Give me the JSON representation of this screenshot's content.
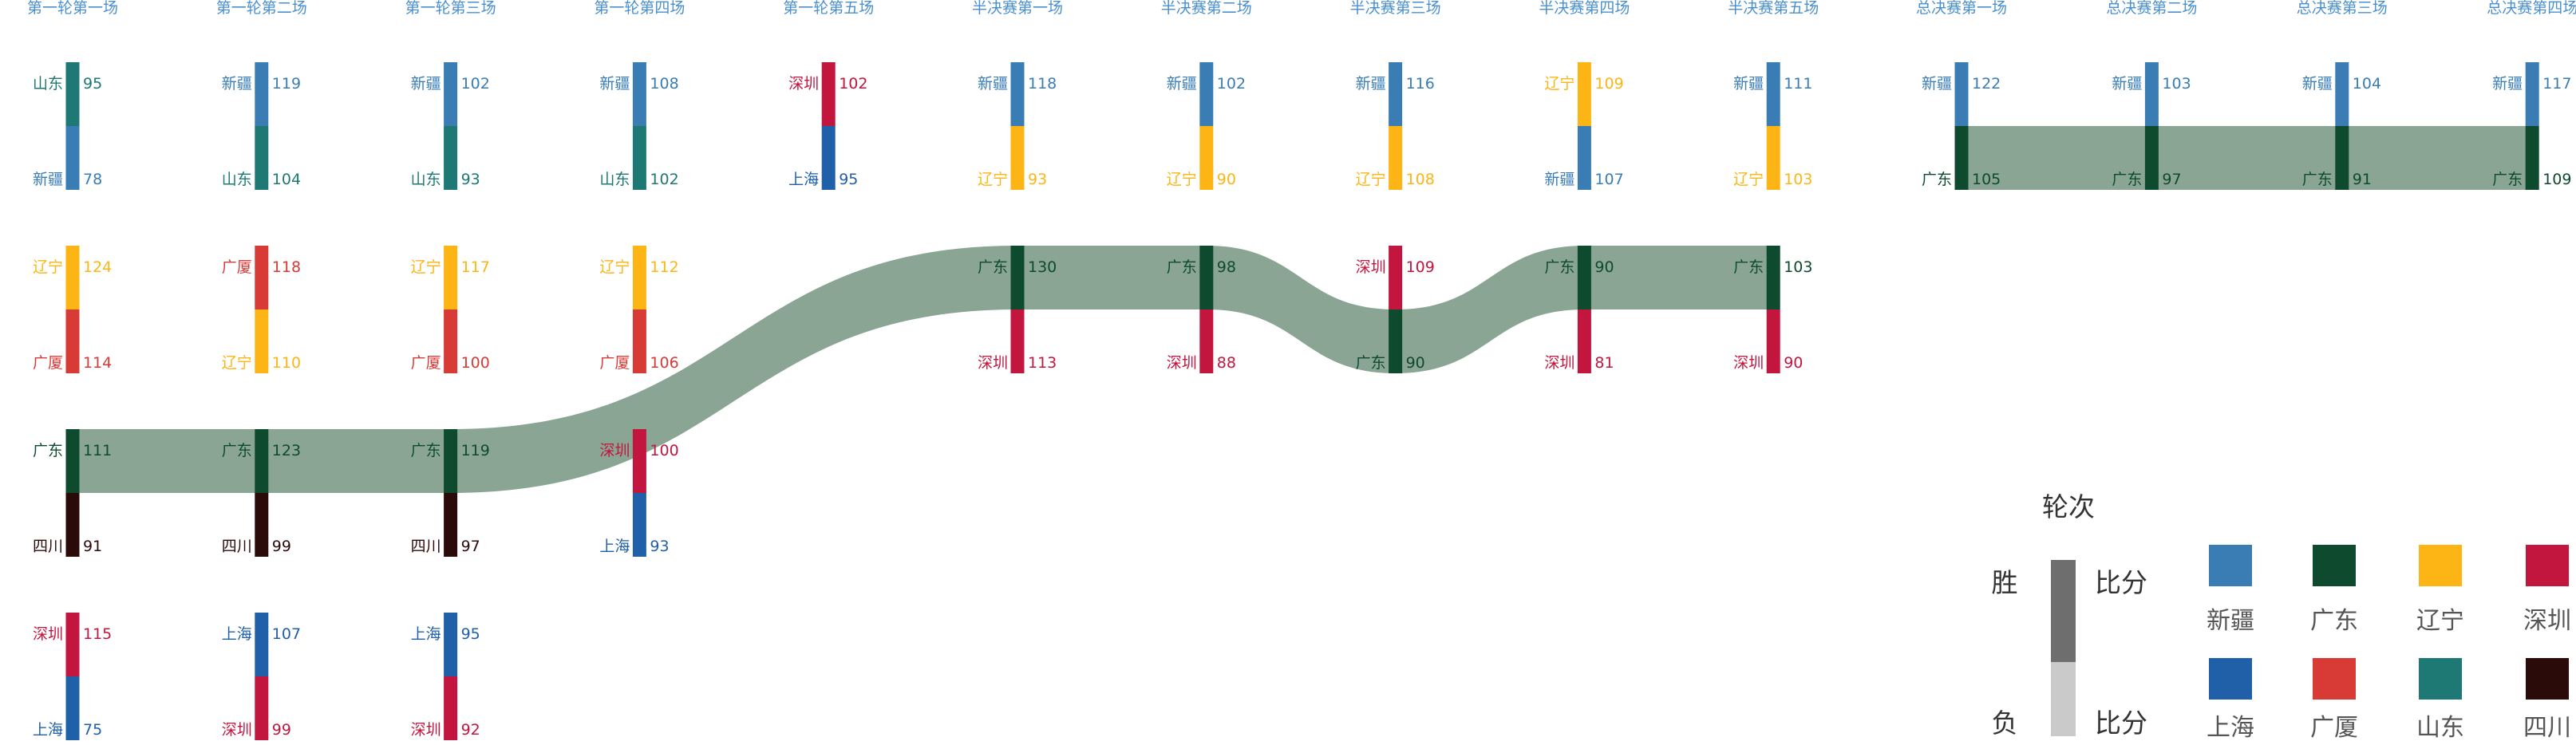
{
  "chart_data": {
    "type": "bar",
    "rounds": [
      "第一轮第一场",
      "第一轮第二场",
      "第一轮第三场",
      "第一轮第四场",
      "第一轮第五场",
      "半决赛第一场",
      "半决赛第二场",
      "半决赛第三场",
      "半决赛第四场",
      "半决赛第五场",
      "总决赛第一场",
      "总决赛第二场",
      "总决赛第三场",
      "总决赛第四场"
    ],
    "matches": [
      {
        "round": "第一轮第一场",
        "winner": "山东",
        "winner_score": 95,
        "loser": "新疆",
        "loser_score": 78
      },
      {
        "round": "第一轮第一场",
        "winner": "辽宁",
        "winner_score": 124,
        "loser": "广厦",
        "loser_score": 114
      },
      {
        "round": "第一轮第一场",
        "winner": "广东",
        "winner_score": 111,
        "loser": "四川",
        "loser_score": 91
      },
      {
        "round": "第一轮第一场",
        "winner": "深圳",
        "winner_score": 115,
        "loser": "上海",
        "loser_score": 75
      },
      {
        "round": "第一轮第二场",
        "winner": "新疆",
        "winner_score": 119,
        "loser": "山东",
        "loser_score": 104
      },
      {
        "round": "第一轮第二场",
        "winner": "广厦",
        "winner_score": 118,
        "loser": "辽宁",
        "loser_score": 110
      },
      {
        "round": "第一轮第二场",
        "winner": "广东",
        "winner_score": 123,
        "loser": "四川",
        "loser_score": 99
      },
      {
        "round": "第一轮第二场",
        "winner": "上海",
        "winner_score": 107,
        "loser": "深圳",
        "loser_score": 99
      },
      {
        "round": "第一轮第三场",
        "winner": "新疆",
        "winner_score": 102,
        "loser": "山东",
        "loser_score": 93
      },
      {
        "round": "第一轮第三场",
        "winner": "辽宁",
        "winner_score": 117,
        "loser": "广厦",
        "loser_score": 100
      },
      {
        "round": "第一轮第三场",
        "winner": "广东",
        "winner_score": 119,
        "loser": "四川",
        "loser_score": 97
      },
      {
        "round": "第一轮第三场",
        "winner": "上海",
        "winner_score": 95,
        "loser": "深圳",
        "loser_score": 92
      },
      {
        "round": "第一轮第四场",
        "winner": "新疆",
        "winner_score": 108,
        "loser": "山东",
        "loser_score": 102
      },
      {
        "round": "第一轮第四场",
        "winner": "辽宁",
        "winner_score": 112,
        "loser": "广厦",
        "loser_score": 106
      },
      {
        "round": "第一轮第四场",
        "winner": "深圳",
        "winner_score": 100,
        "loser": "上海",
        "loser_score": 93
      },
      {
        "round": "第一轮第五场",
        "winner": "深圳",
        "winner_score": 102,
        "loser": "上海",
        "loser_score": 95
      },
      {
        "round": "半决赛第一场",
        "winner": "新疆",
        "winner_score": 118,
        "loser": "辽宁",
        "loser_score": 93
      },
      {
        "round": "半决赛第一场",
        "winner": "广东",
        "winner_score": 130,
        "loser": "深圳",
        "loser_score": 113
      },
      {
        "round": "半决赛第二场",
        "winner": "新疆",
        "winner_score": 102,
        "loser": "辽宁",
        "loser_score": 90
      },
      {
        "round": "半决赛第二场",
        "winner": "广东",
        "winner_score": 98,
        "loser": "深圳",
        "loser_score": 88
      },
      {
        "round": "半决赛第三场",
        "winner": "新疆",
        "winner_score": 116,
        "loser": "辽宁",
        "loser_score": 108
      },
      {
        "round": "半决赛第三场",
        "winner": "深圳",
        "winner_score": 109,
        "loser": "广东",
        "loser_score": 90
      },
      {
        "round": "半决赛第四场",
        "winner": "辽宁",
        "winner_score": 109,
        "loser": "新疆",
        "loser_score": 107
      },
      {
        "round": "半决赛第四场",
        "winner": "广东",
        "winner_score": 90,
        "loser": "深圳",
        "loser_score": 81
      },
      {
        "round": "半决赛第五场",
        "winner": "新疆",
        "winner_score": 111,
        "loser": "辽宁",
        "loser_score": 103
      },
      {
        "round": "半决赛第五场",
        "winner": "广东",
        "winner_score": 103,
        "loser": "深圳",
        "loser_score": 90
      },
      {
        "round": "总决赛第一场",
        "winner": "新疆",
        "winner_score": 122,
        "loser": "广东",
        "loser_score": 105
      },
      {
        "round": "总决赛第二场",
        "winner": "新疆",
        "winner_score": 103,
        "loser": "广东",
        "loser_score": 97
      },
      {
        "round": "总决赛第三场",
        "winner": "新疆",
        "winner_score": 104,
        "loser": "广东",
        "loser_score": 91
      },
      {
        "round": "总决赛第四场",
        "winner": "新疆",
        "winner_score": 117,
        "loser": "广东",
        "loser_score": 109
      }
    ],
    "highlight_team": "广东",
    "team_colors": {
      "新疆": "#3a7db4",
      "广东": "#0e4a2e",
      "辽宁": "#fdb515",
      "深圳": "#c2163f",
      "上海": "#2060a8",
      "广厦": "#d83a35",
      "山东": "#1e7873",
      "四川": "#2b0a0a"
    },
    "path_color": "#8aa593",
    "legend": {
      "title": "轮次",
      "win_label": "胜",
      "loss_label": "负",
      "score_label": "比分",
      "win_color": "#6e6e6e",
      "loss_color": "#cacaca",
      "teams": [
        "新疆",
        "广东",
        "辽宁",
        "深圳",
        "上海",
        "广厦",
        "山东",
        "四川"
      ]
    },
    "round_label_color": "#4a90d0"
  }
}
